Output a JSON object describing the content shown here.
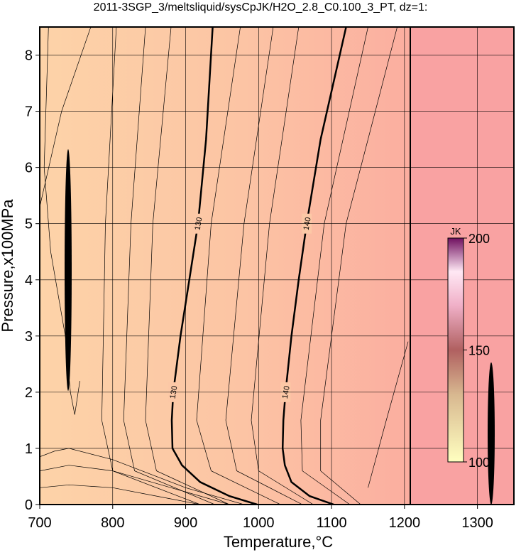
{
  "chart_data": {
    "type": "contour",
    "title": "2011-3SGP_3/meltsliquid/sysCpJK/H2O_2.8_C0.100_3_PT, dz=1:",
    "x_label": "Temperature,°C",
    "y_label": "Pressure,x100MPa",
    "xlim": [
      700,
      1350
    ],
    "xticks": [
      700,
      800,
      900,
      1000,
      1100,
      1200,
      1300
    ],
    "ylim": [
      0,
      8.5
    ],
    "yticks": [
      0,
      1,
      2,
      3,
      4,
      5,
      6,
      7,
      8
    ],
    "grid": true,
    "contours": [
      {
        "level": 130,
        "x": [
          998,
          960,
          920,
          895,
          882,
          881,
          883,
          893,
          905,
          917,
          928,
          937
        ],
        "y": [
          0,
          0.15,
          0.4,
          0.7,
          1,
          1.5,
          2,
          3,
          4,
          5,
          6.5,
          8.5
        ]
      },
      {
        "level": 140,
        "x": [
          1103,
          1070,
          1045,
          1036,
          1033,
          1034,
          1037,
          1045,
          1055,
          1066,
          1085,
          1120
        ],
        "y": [
          0,
          0.15,
          0.4,
          0.7,
          1,
          1.5,
          2,
          3,
          4,
          5,
          6.5,
          8.5
        ]
      }
    ],
    "lines": [
      {
        "x": [
          920,
          800,
          785,
          790,
          805
        ],
        "y": [
          0,
          0.6,
          1.5,
          5,
          8.5
        ]
      },
      {
        "x": [
          940,
          830,
          815,
          825,
          845
        ],
        "y": [
          0,
          0.6,
          1.5,
          5,
          8.5
        ]
      },
      {
        "x": [
          960,
          860,
          845,
          855,
          880
        ],
        "y": [
          0,
          0.6,
          1.5,
          5,
          8.5
        ]
      },
      {
        "x": [
          1030,
          935,
          915,
          935,
          975
        ],
        "y": [
          0,
          0.6,
          1.5,
          5,
          8.5
        ]
      },
      {
        "x": [
          1060,
          970,
          955,
          980,
          1020
        ],
        "y": [
          0,
          0.6,
          1.5,
          5,
          8.5
        ]
      },
      {
        "x": [
          1075,
          1000,
          990,
          1015,
          1055
        ],
        "y": [
          0,
          0.6,
          1.5,
          5,
          8.5
        ]
      },
      {
        "x": [
          1125,
          1060,
          1058,
          1090,
          1150
        ],
        "y": [
          0,
          0.6,
          1.5,
          5,
          8.5
        ]
      },
      {
        "x": [
          1140,
          1085,
          1085,
          1120,
          1190
        ],
        "y": [
          0,
          0.6,
          1.5,
          5,
          8.5
        ]
      },
      {
        "x": [
          700,
          740,
          800,
          860,
          920
        ],
        "y": [
          0.3,
          0.35,
          0.3,
          0.15,
          0
        ]
      },
      {
        "x": [
          700,
          740,
          800,
          880,
          960
        ],
        "y": [
          0.6,
          0.7,
          0.6,
          0.3,
          0
        ]
      },
      {
        "x": [
          700,
          720,
          740,
          800,
          900,
          980
        ],
        "y": [
          0.85,
          0.95,
          1.0,
          0.8,
          0.3,
          0
        ]
      },
      {
        "x": [
          712,
          706,
          715,
          735,
          742,
          748,
          755
        ],
        "y": [
          8.5,
          6,
          4.5,
          3,
          2,
          1.6,
          2.2
        ]
      },
      {
        "x": [
          700,
          730,
          770
        ],
        "y": [
          5.3,
          7,
          8.5
        ]
      },
      {
        "x": [
          1150,
          1175,
          1205
        ],
        "y": [
          0.3,
          1.5,
          2.9
        ]
      }
    ],
    "colorbar": {
      "label": "JK",
      "lim": [
        100,
        200
      ],
      "ticks": [
        100,
        150,
        200
      ]
    }
  }
}
